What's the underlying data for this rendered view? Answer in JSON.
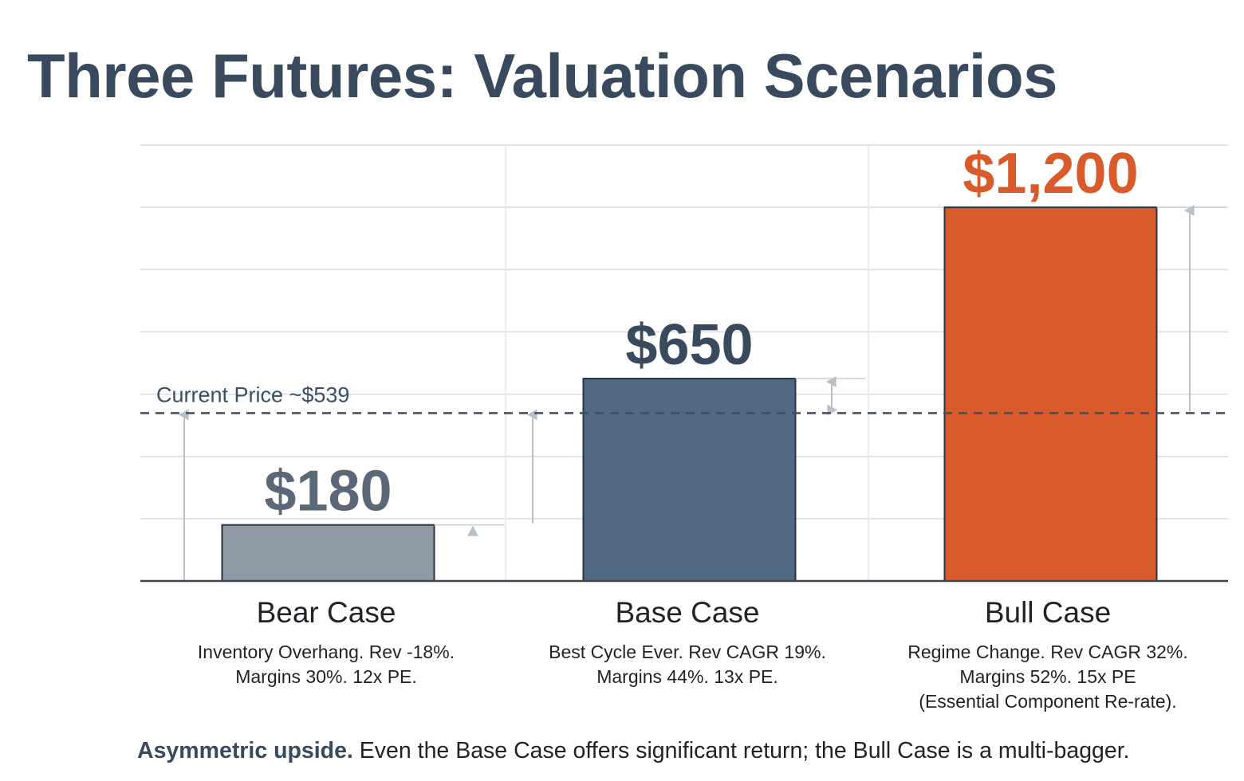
{
  "title": "Three Futures: Valuation Scenarios",
  "colors": {
    "bear": "#8f9aa6",
    "base": "#506a84",
    "bull": "#d95b2b",
    "title": "#394a5e",
    "grid": "#d9dce0",
    "current_line": "#3b4f66"
  },
  "chart_data": {
    "type": "bar",
    "categories": [
      "Bear Case",
      "Base Case",
      "Bull Case"
    ],
    "values": [
      180,
      650,
      1200
    ],
    "value_labels": [
      "$180",
      "$650",
      "$1,200"
    ],
    "descriptions": [
      [
        "Inventory Overhang. Rev -18%.",
        "Margins 30%. 12x PE."
      ],
      [
        "Best Cycle Ever. Rev CAGR 19%.",
        "Margins 44%. 13x PE."
      ],
      [
        "Regime Change. Rev CAGR 32%.",
        "Margins 52%. 15x PE",
        "(Essential Component Re-rate)."
      ]
    ],
    "reference_line": {
      "label": "Current Price ~$539",
      "value": 539
    },
    "ylim": [
      0,
      1400
    ],
    "grid": true,
    "xlabel": "",
    "ylabel": ""
  },
  "footer": {
    "highlight": "Asymmetric upside.",
    "text": " Even the Base Case offers significant return; the Bull Case is a multi-bagger."
  }
}
